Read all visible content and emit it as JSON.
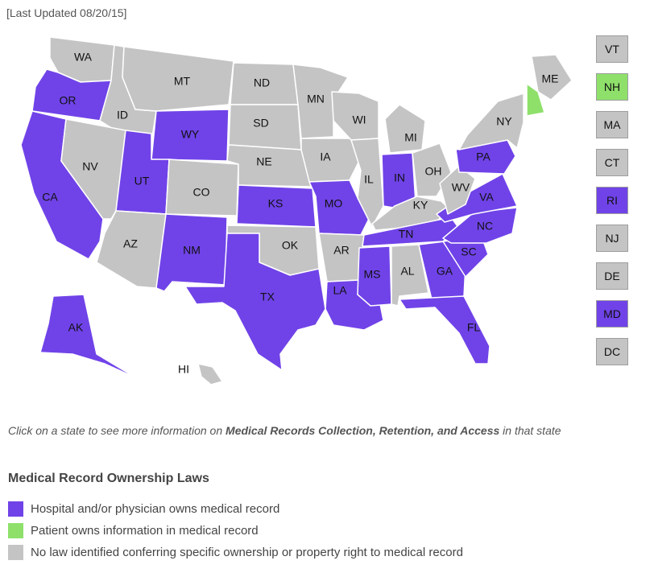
{
  "header": {
    "last_updated": "[Last Updated 08/20/15]"
  },
  "colors": {
    "owns": "#7043e8",
    "patient": "#8ee06a",
    "none": "#c4c4c4"
  },
  "categories": {
    "owns": "Hospital and/or physician owns medical record",
    "patient": "Patient owns information in medical record",
    "none": "No law identified conferring specific ownership or property right to medical record"
  },
  "states": {
    "WA": "none",
    "OR": "owns",
    "CA": "owns",
    "ID": "none",
    "NV": "none",
    "MT": "none",
    "WY": "owns",
    "UT": "owns",
    "AZ": "none",
    "CO": "none",
    "NM": "owns",
    "ND": "none",
    "SD": "none",
    "NE": "none",
    "KS": "owns",
    "OK": "none",
    "TX": "owns",
    "MN": "none",
    "IA": "none",
    "MO": "owns",
    "AR": "none",
    "LA": "owns",
    "WI": "none",
    "IL": "none",
    "MI": "none",
    "IN": "owns",
    "OH": "none",
    "KY": "none",
    "TN": "owns",
    "MS": "owns",
    "AL": "none",
    "GA": "owns",
    "FL": "owns",
    "SC": "owns",
    "NC": "owns",
    "VA": "owns",
    "WV": "none",
    "PA": "owns",
    "NY": "none",
    "ME": "none",
    "NH": "patient",
    "AK": "owns",
    "HI": "none",
    "VT": "none",
    "MA": "none",
    "CT": "none",
    "RI": "owns",
    "NJ": "none",
    "DE": "none",
    "MD": "owns",
    "DC": "none"
  },
  "side_boxes": [
    "VT",
    "NH",
    "MA",
    "CT",
    "RI",
    "NJ",
    "DE",
    "MD",
    "DC"
  ],
  "instructions": {
    "before": "Click on a state to see more information on ",
    "bold": "Medical Records Collection, Retention, and Access",
    "after": " in that state"
  },
  "legend": {
    "title": "Medical Record Ownership Laws",
    "items": [
      {
        "key": "owns",
        "label": "Hospital and/or physician owns medical record"
      },
      {
        "key": "patient",
        "label": "Patient owns information in medical record"
      },
      {
        "key": "none",
        "label": "No law identified conferring specific ownership or property right to medical record"
      }
    ]
  }
}
